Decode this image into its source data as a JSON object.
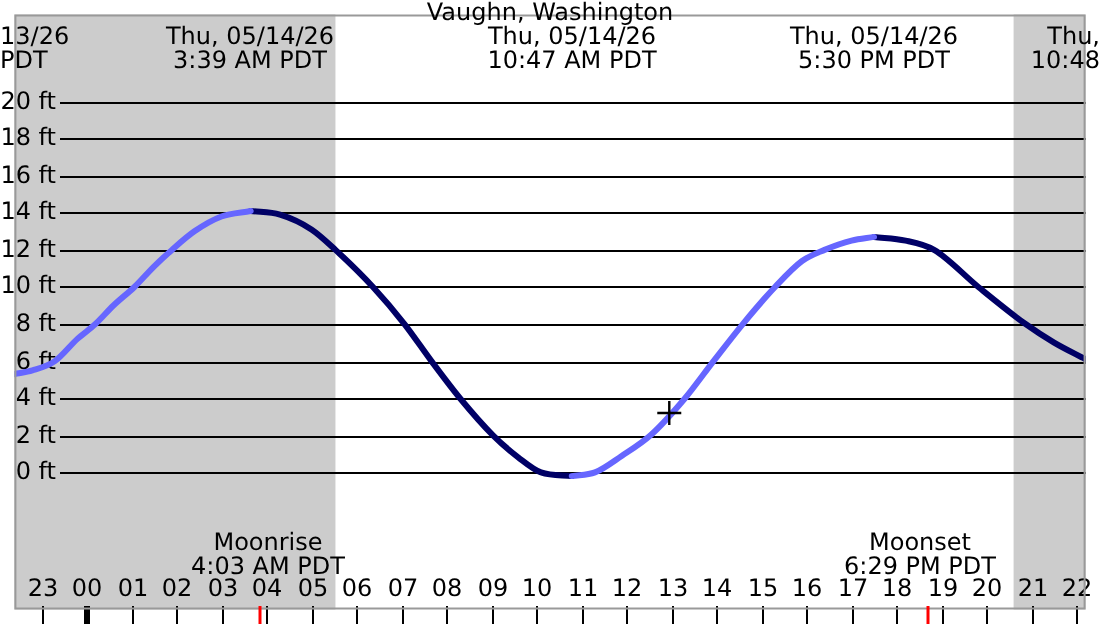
{
  "chart_data": {
    "type": "line",
    "title": "Vaughn, Washington",
    "xlim": [
      "--05-13T22:24",
      "--05-14T22:12"
    ],
    "xticks": [
      {
        "value": "--05-13T23:00",
        "label": "23"
      },
      {
        "value": "--05-14T00:00",
        "label": "00"
      },
      {
        "value": "--05-14T01:00",
        "label": "01"
      },
      {
        "value": "--05-14T02:00",
        "label": "02"
      },
      {
        "value": "--05-14T03:00",
        "label": "03"
      },
      {
        "value": "--05-14T04:00",
        "label": "04"
      },
      {
        "value": "--05-14T05:00",
        "label": "05"
      },
      {
        "value": "--05-14T06:00",
        "label": "06"
      },
      {
        "value": "--05-14T07:00",
        "label": "07"
      },
      {
        "value": "--05-14T08:00",
        "label": "08"
      },
      {
        "value": "--05-14T09:00",
        "label": "09"
      },
      {
        "value": "--05-14T10:00",
        "label": "10"
      },
      {
        "value": "--05-14T11:00",
        "label": "11"
      },
      {
        "value": "--05-14T12:00",
        "label": "12"
      },
      {
        "value": "--05-14T13:00",
        "label": "13"
      },
      {
        "value": "--05-14T14:00",
        "label": "14"
      },
      {
        "value": "--05-14T15:00",
        "label": "15"
      },
      {
        "value": "--05-14T16:00",
        "label": "16"
      },
      {
        "value": "--05-14T17:00",
        "label": "17"
      },
      {
        "value": "--05-14T18:00",
        "label": "18"
      },
      {
        "value": "--05-14T19:00",
        "label": "19"
      },
      {
        "value": "--05-14T20:00",
        "label": "20"
      },
      {
        "value": "--05-14T21:00",
        "label": "21"
      },
      {
        "value": "--05-14T22:00",
        "label": "22"
      }
    ],
    "ylim": [
      -7.4,
      24.7
    ],
    "yticks": [
      {
        "value": 0,
        "label": "0 ft"
      },
      {
        "value": 2,
        "label": "2 ft"
      },
      {
        "value": 4,
        "label": "4 ft"
      },
      {
        "value": 6,
        "label": "6 ft"
      },
      {
        "value": 8,
        "label": "8 ft"
      },
      {
        "value": 10,
        "label": "10 ft"
      },
      {
        "value": 12,
        "label": "12 ft"
      },
      {
        "value": 14,
        "label": "14 ft"
      },
      {
        "value": 16,
        "label": "16 ft"
      },
      {
        "value": 18,
        "label": "18 ft"
      },
      {
        "value": 20,
        "label": "20 ft"
      }
    ],
    "grid": "y",
    "legend": false,
    "marker": "none",
    "bands": [
      {
        "axis": "x",
        "from": "--05-13T22:24",
        "to": "--05-14T05:32",
        "color": "#cccccc"
      },
      {
        "axis": "x",
        "from": "--05-14T20:36",
        "to": "--05-14T22:12",
        "color": "#cccccc"
      }
    ],
    "series": [
      {
        "type": "line",
        "color": "#6666ff",
        "x": [
          "--05-13T22:24",
          "--05-13T22:48",
          "--05-13T23:18",
          "--05-13T23:48",
          "--05-14T00:12",
          "--05-14T00:36",
          "--05-14T01:04",
          "--05-14T01:30",
          "--05-14T01:54",
          "--05-14T02:24",
          "--05-14T03:00",
          "--05-14T03:39",
          "--05-14T07:00",
          "--05-14T10:47",
          "--05-14T11:18",
          "--05-14T11:54",
          "--05-14T12:32",
          "--05-14T13:18",
          "--05-14T13:56",
          "--05-14T14:35",
          "--05-14T15:18",
          "--05-14T15:54",
          "--05-14T16:24",
          "--05-14T17:00",
          "--05-14T17:30"
        ],
        "values": [
          5.3,
          5.5,
          6,
          7.2,
          8,
          9,
          10,
          11.1,
          12,
          13,
          13.8,
          14.1,
          null,
          -0.2,
          0,
          0.9,
          2,
          4,
          6,
          8,
          10,
          11.4,
          12,
          12.5,
          12.7
        ]
      },
      {
        "type": "line",
        "color": "#000066",
        "x": [
          "--05-14T03:39",
          "--05-14T04:18",
          "--05-14T05:00",
          "--05-14T05:32",
          "--05-14T06:22",
          "--05-14T07:04",
          "--05-14T07:40",
          "--05-14T08:18",
          "--05-14T09:02",
          "--05-14T09:36",
          "--05-14T10:06",
          "--05-14T10:47",
          "--05-14T14:00",
          "--05-14T17:30",
          "--05-14T18:12",
          "--05-14T18:50",
          "--05-14T19:49",
          "--05-14T20:52",
          "--05-14T21:30",
          "--05-14T22:12"
        ],
        "values": [
          14.1,
          13.9,
          13.1,
          12,
          10,
          8,
          6,
          4,
          2,
          0.8,
          0,
          -0.2,
          null,
          12.7,
          12.5,
          12,
          10,
          8,
          7,
          6.1
        ]
      },
      {
        "type": "scatter",
        "color": "#000000",
        "marker": "cross",
        "x": [
          "--05-14T12:57"
        ],
        "values": [
          3.2
        ]
      }
    ],
    "annotations": [
      "13/26\nPDT",
      "Thu, 05/14/26\n3:39 AM PDT",
      "Thu, 05/14/26\n10:47 AM PDT",
      "Thu, 05/14/26\n5:30 PM PDT",
      "Moonrise\n4:03 AM PDT",
      "Moonset\n6:29 PM PDT",
      "Thu,\n10:48"
    ]
  }
}
